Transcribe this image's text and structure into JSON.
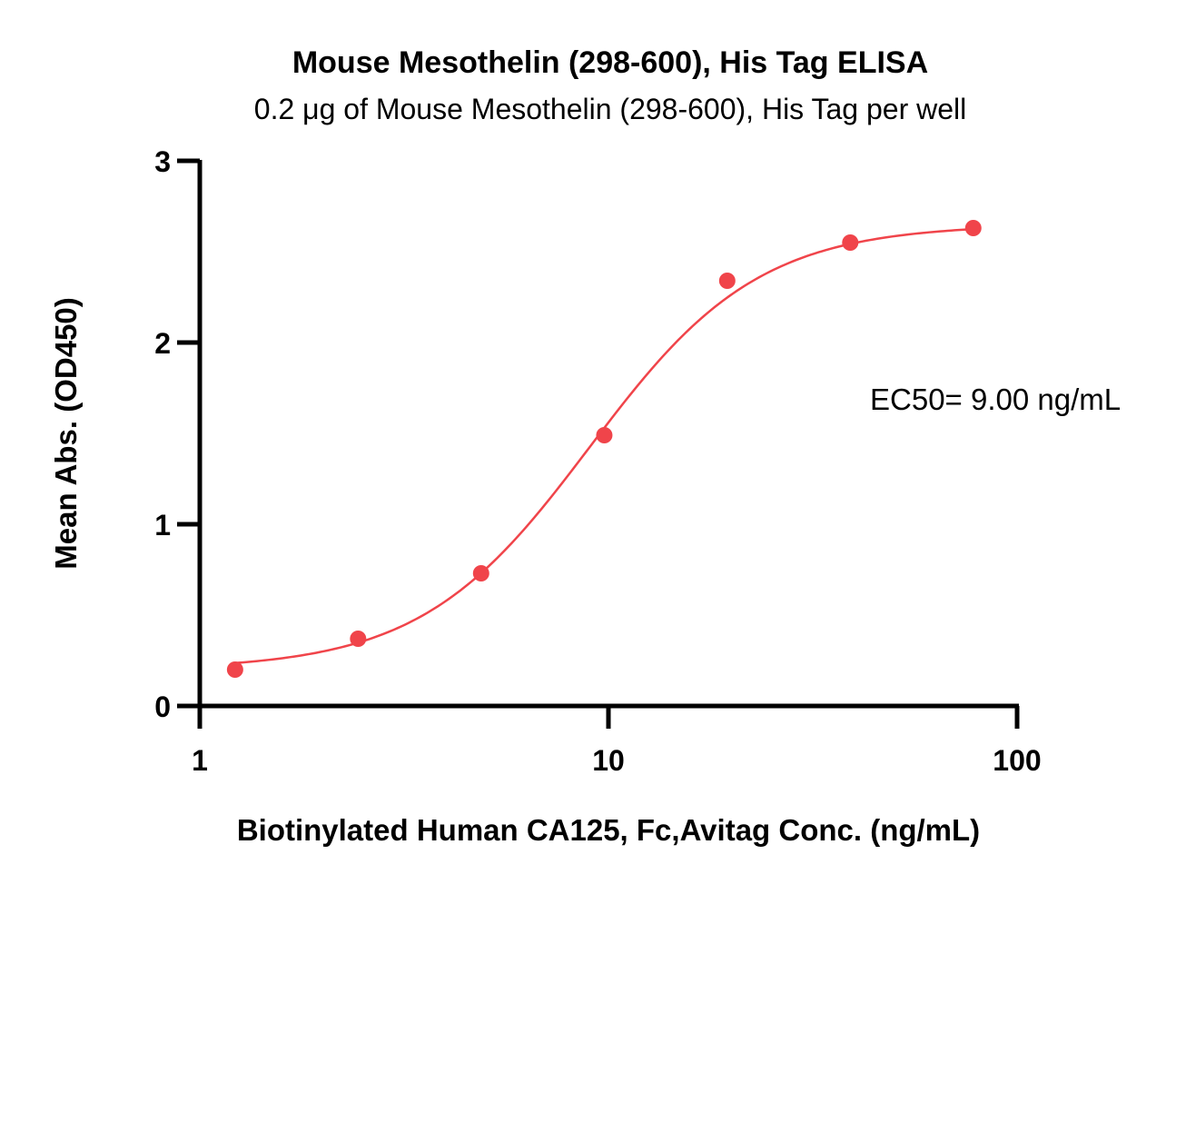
{
  "chart_data": {
    "type": "scatter",
    "title": "Mouse Mesothelin (298-600), His Tag ELISA",
    "subtitle": "0.2 μg of Mouse Mesothelin (298-600), His Tag per well",
    "xlabel": "Biotinylated Human CA125, Fc,Avitag Conc. (ng/mL)",
    "ylabel": "Mean Abs. (OD450)",
    "xscale": "log",
    "xlim": [
      1,
      100
    ],
    "ylim": [
      0,
      3
    ],
    "xticks": [
      1,
      10,
      100
    ],
    "xtick_labels": [
      "1",
      "10",
      "100"
    ],
    "yticks": [
      0,
      1,
      2,
      3
    ],
    "ytick_labels": [
      "0",
      "1",
      "2",
      "3"
    ],
    "grid": false,
    "series": [
      {
        "color": "#f0444a",
        "x": [
          1.22,
          2.44,
          4.88,
          9.77,
          19.53,
          39.06,
          78.13
        ],
        "y": [
          0.2,
          0.37,
          0.73,
          1.49,
          2.34,
          2.55,
          2.63
        ]
      }
    ],
    "fit": {
      "model": "4PL",
      "bottom": 0.2,
      "top": 2.65,
      "ec50": 9.0,
      "hill": 2.1,
      "color": "#f0444a"
    },
    "annotations": [
      {
        "text": "EC50= 9.00 ng/mL"
      }
    ]
  }
}
